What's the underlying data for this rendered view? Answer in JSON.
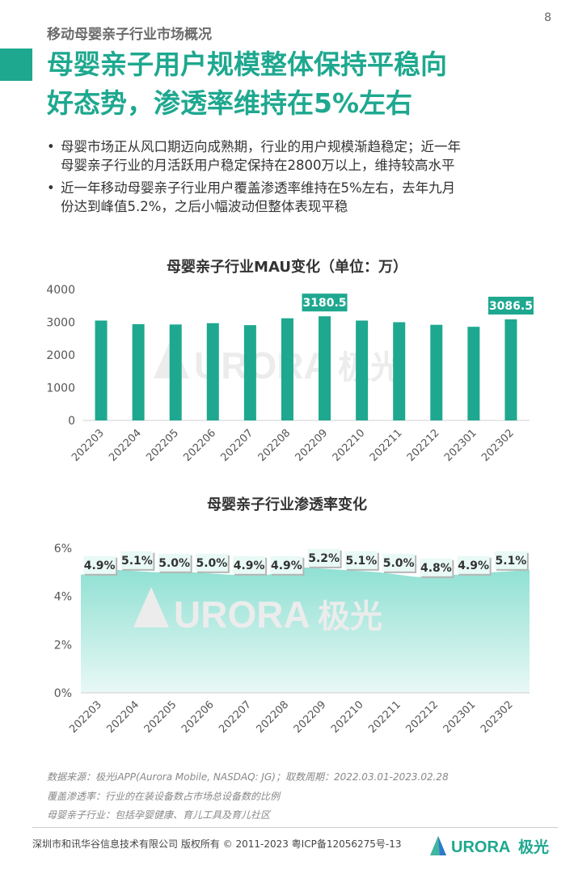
{
  "header": {
    "section_title": "移动母婴亲子行业市场概况",
    "page_number": "8",
    "headline_line1": "母婴亲子用户规模整体保持平稳向",
    "headline_line2": "好态势，渗透率维持在5%左右"
  },
  "bullets": [
    {
      "dot": "•",
      "line1": "母婴市场正从风口期迈向成熟期，行业的用户规模渐趋稳定；近一年",
      "line2": "母婴亲子行业的月活跃用户稳定保持在2800万以上，维持较高水平"
    },
    {
      "dot": "•",
      "line1": "近一年移动母婴亲子行业用户覆盖渗透率维持在5%左右，去年九月",
      "line2": "份达到峰值5.2%，之后小幅波动但整体表现平稳"
    }
  ],
  "colors": {
    "accent": "#1ea88f",
    "area_top": "#8fe0d3",
    "area_bottom": "#e8f8f5",
    "label_bg": "#e9faf6",
    "watermark": "#ececec"
  },
  "watermark": {
    "logo_text": "URORA",
    "logo_cn": "极光"
  },
  "chart_data": [
    {
      "type": "bar",
      "title": "母婴亲子行业MAU变化（单位：万）",
      "categories": [
        "202203",
        "202204",
        "202205",
        "202206",
        "202207",
        "202208",
        "202209",
        "202210",
        "202211",
        "202212",
        "202301",
        "202302"
      ],
      "values": [
        3050,
        2940,
        2930,
        2970,
        2910,
        3120,
        3180.5,
        3050,
        3000,
        2920,
        2860,
        3086.5
      ],
      "ylim": [
        0,
        4000
      ],
      "yticks": [
        0,
        1000,
        2000,
        3000,
        4000
      ],
      "data_labels": [
        {
          "index": 6,
          "text": "3180.5"
        },
        {
          "index": 11,
          "text": "3086.5"
        }
      ],
      "grid": false
    },
    {
      "type": "area",
      "title": "母婴亲子行业渗透率变化",
      "categories": [
        "202203",
        "202204",
        "202205",
        "202206",
        "202207",
        "202208",
        "202209",
        "202210",
        "202211",
        "202212",
        "202301",
        "202302"
      ],
      "values": [
        4.9,
        5.1,
        5.0,
        5.0,
        4.9,
        4.9,
        5.2,
        5.1,
        5.0,
        4.8,
        4.9,
        5.1
      ],
      "labels": [
        "4.9%",
        "5.1%",
        "5.0%",
        "5.0%",
        "4.9%",
        "4.9%",
        "5.2%",
        "5.1%",
        "5.0%",
        "4.8%",
        "4.9%",
        "5.1%"
      ],
      "ylim": [
        0,
        6
      ],
      "yticks": [
        "0%",
        "2%",
        "4%",
        "6%"
      ],
      "grid": false
    }
  ],
  "sources": {
    "line1": "数据来源：极光iAPP(Aurora Mobile, NASDAQ: JG)；取数周期：2022.03.01-2023.02.28",
    "line2": "覆盖渗透率：行业的在装设备数占市场总设备数的比例",
    "line3": "母婴亲子行业：包括孕婴健康、育儿工具及育儿社区"
  },
  "footer": {
    "copyright": "深圳市和讯华谷信息技术有限公司 版权所有 © 2011-2023 粤ICP备12056275号-13",
    "brand_text": "URORA",
    "brand_cn": "极光"
  }
}
